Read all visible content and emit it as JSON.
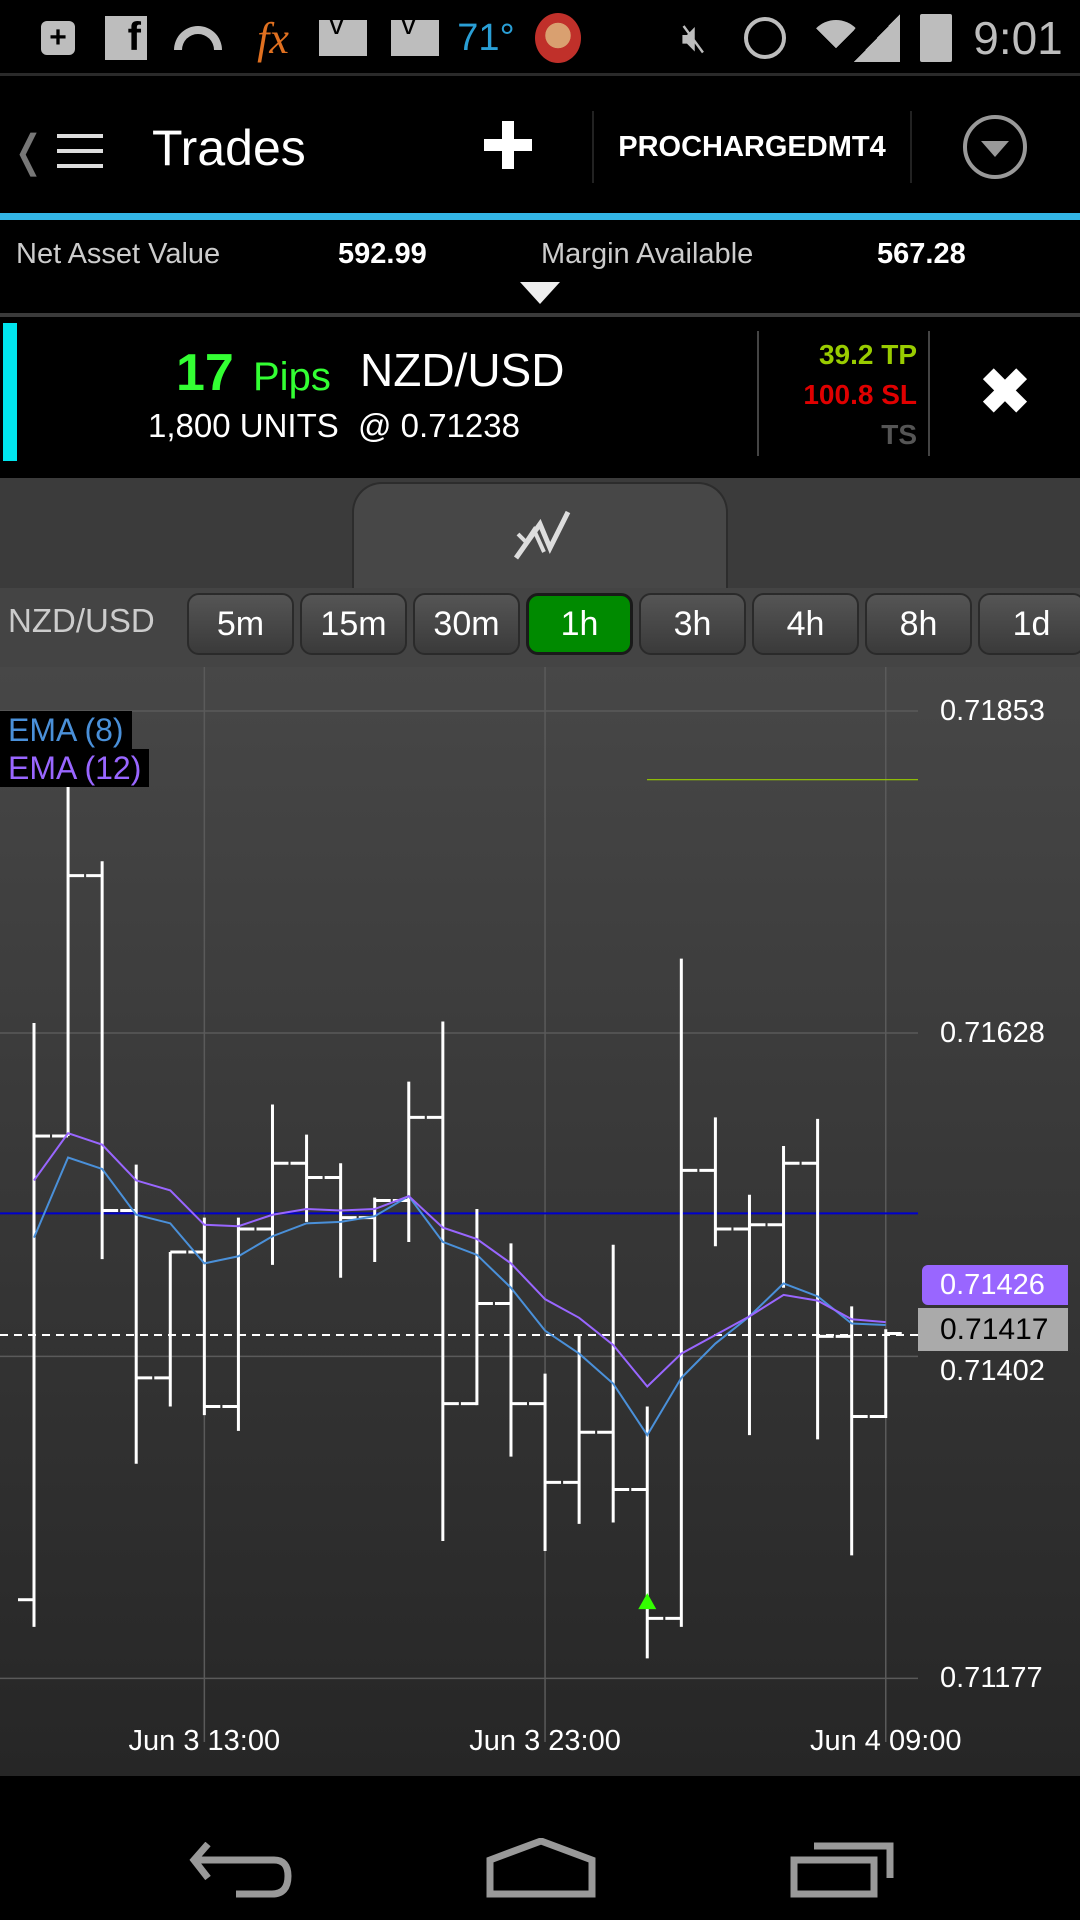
{
  "status_bar": {
    "icons": [
      "plus-badge-icon",
      "facebook-icon",
      "signal-arc-icon",
      "fx-icon",
      "mail-icon",
      "mail-icon",
      "weather-temp",
      "avatar-icon",
      "mute-icon",
      "alarm-icon",
      "wifi-icon",
      "cell-signal-icon",
      "battery-icon"
    ],
    "temperature": "71°",
    "time": "9:01",
    "fx_label": "fx"
  },
  "app_bar": {
    "title": "Trades",
    "account": "PROCHARGEDMT4",
    "accent_color": "#33b5e5"
  },
  "summary": {
    "nav_label": "Net Asset Value",
    "nav_value": "592.99",
    "margin_label": "Margin Available",
    "margin_value": "567.28"
  },
  "trade": {
    "pips_value": "17",
    "pips_label": "Pips",
    "pair": "NZD/USD",
    "units_text": "1,800 UNITS",
    "price_text": "@ 0.71238",
    "tp": "39.2 TP",
    "sl": "100.8 SL",
    "ts": "TS",
    "colors": {
      "pips": "#33ff33",
      "tp": "#99cc00",
      "sl": "#e00000",
      "ts": "#555555",
      "indicator": "#00e5ee"
    }
  },
  "timeframes": {
    "symbol": "NZD/USD",
    "options": [
      "5m",
      "15m",
      "30m",
      "1h",
      "3h",
      "4h",
      "8h",
      "1d"
    ],
    "selected": "1h",
    "selected_color": "#008a00"
  },
  "chart_data": {
    "type": "ohlc",
    "symbol": "NZD/USD",
    "interval": "1h",
    "x": [
      "Jun 3 08:00",
      "Jun 3 09:00",
      "Jun 3 10:00",
      "Jun 3 11:00",
      "Jun 3 12:00",
      "Jun 3 13:00",
      "Jun 3 14:00",
      "Jun 3 15:00",
      "Jun 3 16:00",
      "Jun 3 17:00",
      "Jun 3 18:00",
      "Jun 3 19:00",
      "Jun 3 20:00",
      "Jun 3 21:00",
      "Jun 3 22:00",
      "Jun 3 23:00",
      "Jun 4 00:00",
      "Jun 4 01:00",
      "Jun 4 02:00",
      "Jun 4 03:00",
      "Jun 4 04:00",
      "Jun 4 05:00",
      "Jun 4 06:00",
      "Jun 4 07:00",
      "Jun 4 08:00",
      "Jun 4 09:00"
    ],
    "open": [
      0.71232,
      0.71556,
      0.71738,
      0.71504,
      0.71387,
      0.71475,
      0.71367,
      0.71491,
      0.71537,
      0.71527,
      0.71499,
      0.71511,
      0.71569,
      0.71369,
      0.71439,
      0.71369,
      0.71314,
      0.71349,
      0.71309,
      0.71219,
      0.71532,
      0.71491,
      0.71494,
      0.71537,
      0.71416,
      0.7136
    ],
    "high": [
      0.71635,
      0.718,
      0.71748,
      0.71536,
      0.71475,
      0.71499,
      0.71499,
      0.71578,
      0.71557,
      0.71537,
      0.71513,
      0.71594,
      0.71636,
      0.71505,
      0.71481,
      0.7139,
      0.71417,
      0.7148,
      0.71367,
      0.7168,
      0.71569,
      0.71515,
      0.71549,
      0.71568,
      0.71437,
      0.71421
    ],
    "low": [
      0.71213,
      0.71556,
      0.7147,
      0.71327,
      0.71367,
      0.71361,
      0.7135,
      0.71466,
      0.71496,
      0.71457,
      0.71468,
      0.71482,
      0.71273,
      0.71368,
      0.71332,
      0.71266,
      0.71285,
      0.71286,
      0.71191,
      0.71213,
      0.71479,
      0.71347,
      0.7145,
      0.71344,
      0.71263,
      0.71359
    ],
    "close": [
      0.71556,
      0.71738,
      0.71504,
      0.71387,
      0.71475,
      0.71367,
      0.71491,
      0.71537,
      0.71527,
      0.71499,
      0.71511,
      0.71569,
      0.71369,
      0.71439,
      0.71369,
      0.71314,
      0.71349,
      0.71309,
      0.71219,
      0.71532,
      0.71491,
      0.71494,
      0.71537,
      0.71416,
      0.7136,
      0.71418
    ],
    "indicators": [
      {
        "name": "EMA (8)",
        "color": "#4a90d9",
        "values": [
          0.71485,
          0.71541,
          0.71533,
          0.71501,
          0.71495,
          0.71467,
          0.71472,
          0.71486,
          0.71495,
          0.71496,
          0.715,
          0.71514,
          0.71482,
          0.71473,
          0.7145,
          0.7142,
          0.71404,
          0.71383,
          0.71347,
          0.71387,
          0.71411,
          0.7143,
          0.71453,
          0.71444,
          0.71425,
          0.71424
        ]
      },
      {
        "name": "EMA (12)",
        "color": "#9966ff",
        "values": [
          0.71525,
          0.71558,
          0.7155,
          0.71525,
          0.71518,
          0.71494,
          0.71493,
          0.71501,
          0.71505,
          0.71504,
          0.71505,
          0.71514,
          0.71492,
          0.71484,
          0.71467,
          0.71442,
          0.71429,
          0.7141,
          0.71381,
          0.71404,
          0.71417,
          0.7143,
          0.71445,
          0.71441,
          0.71428,
          0.71426
        ]
      }
    ],
    "y_ticks": [
      "0.71853",
      "0.71628",
      "0.71402",
      "0.71177"
    ],
    "x_ticks": [
      "Jun 3 13:00",
      "Jun 3 23:00",
      "Jun 4 09:00"
    ],
    "ylim": [
      0.711,
      0.719
    ],
    "grid": true,
    "horizontal_lines": [
      {
        "role": "take-profit",
        "value": 0.71805,
        "color": "#99cc00"
      },
      {
        "role": "reference",
        "value": 0.71502,
        "color": "#0000cc"
      },
      {
        "role": "current-price",
        "value": 0.71417,
        "color": "#ffffff",
        "dashed": true
      }
    ],
    "entry_marker": {
      "x": "Jun 4 02:00",
      "value": 0.71231,
      "color": "#33ff00"
    },
    "current_price_label": "0.71417",
    "ema12_price_label": "0.71426"
  }
}
